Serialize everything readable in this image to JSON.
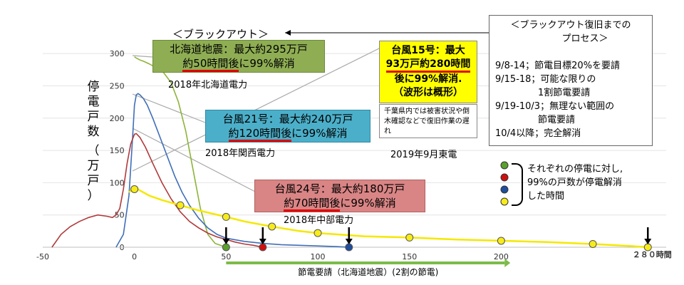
{
  "chart_data": {
    "type": "line",
    "title": "＜ブラックアウト＞",
    "xlabel": "",
    "ylabel": "停電戸数（万戸）",
    "xlim": [
      -50,
      290
    ],
    "ylim": [
      0,
      320
    ],
    "xticks": [
      -50,
      0,
      50,
      100,
      150,
      200
    ],
    "yticks": [
      0,
      50,
      100,
      150,
      200,
      250,
      300
    ],
    "series": [
      {
        "name": "2018年北海道電力",
        "color": "#8db33a",
        "x": [
          0,
          1,
          3,
          5,
          8,
          10,
          13,
          16,
          20,
          24,
          28,
          32,
          36,
          40,
          44,
          48,
          50
        ],
        "y": [
          295,
          293,
          290,
          288,
          284,
          281,
          278,
          270,
          255,
          225,
          180,
          120,
          60,
          20,
          6,
          2,
          0
        ]
      },
      {
        "name": "2018年関西電力",
        "color": "#3f6eb8",
        "x": [
          -10,
          -6,
          -3,
          -1,
          0,
          1,
          2,
          3,
          5,
          7,
          10,
          14,
          18,
          22,
          26,
          30,
          35,
          40,
          45,
          50,
          60,
          70,
          80,
          90,
          100,
          110,
          117
        ],
        "y": [
          0,
          20,
          80,
          170,
          220,
          236,
          238,
          236,
          230,
          220,
          200,
          170,
          140,
          110,
          85,
          65,
          45,
          30,
          20,
          14,
          9,
          6,
          4,
          3,
          2,
          1,
          0
        ]
      },
      {
        "name": "2018年中部電力",
        "color": "#b03a3a",
        "x": [
          -45,
          -40,
          -35,
          -30,
          -25,
          -20,
          -15,
          -12,
          -10,
          -8,
          -6,
          -4,
          -2,
          0,
          1,
          3,
          6,
          10,
          15,
          20,
          25,
          30,
          35,
          40,
          45,
          50,
          55,
          60,
          65,
          70
        ],
        "y": [
          0,
          20,
          32,
          40,
          46,
          50,
          48,
          46,
          50,
          60,
          90,
          130,
          160,
          175,
          176,
          170,
          155,
          130,
          100,
          75,
          55,
          40,
          30,
          22,
          16,
          12,
          8,
          5,
          3,
          0
        ]
      },
      {
        "name": "2019年9月東電",
        "color": "#f5e800",
        "x": [
          -3,
          0,
          3,
          8,
          15,
          25,
          35,
          50,
          60,
          75,
          90,
          100,
          110,
          125,
          150,
          175,
          200,
          225,
          250,
          270,
          280
        ],
        "y": [
          85,
          93,
          88,
          80,
          73,
          65,
          57,
          47,
          40,
          32,
          25,
          22,
          20,
          17,
          15,
          12,
          10,
          8,
          5,
          2,
          0
        ]
      }
    ],
    "markers": [
      {
        "x": 0,
        "y": 90,
        "color": "#f7ec1a"
      },
      {
        "x": 25,
        "y": 65,
        "color": "#f7ec1a"
      },
      {
        "x": 50,
        "y": 47,
        "color": "#f7ec1a"
      },
      {
        "x": 75,
        "y": 32,
        "color": "#f7ec1a"
      },
      {
        "x": 100,
        "y": 22,
        "color": "#f7ec1a"
      },
      {
        "x": 150,
        "y": 15,
        "color": "#f7ec1a"
      },
      {
        "x": 200,
        "y": 10,
        "color": "#f7ec1a"
      },
      {
        "x": 250,
        "y": 5,
        "color": "#f7ec1a"
      },
      {
        "x": 280,
        "y": 0,
        "color": "#f7ec1a"
      },
      {
        "x": 50,
        "y": 0,
        "color": "#5aa02c"
      },
      {
        "x": 70,
        "y": 0,
        "color": "#d01010"
      },
      {
        "x": 117,
        "y": 0,
        "color": "#1f4e9c"
      }
    ],
    "arrows_down_at": [
      50,
      70,
      117,
      280
    ],
    "hours_label": "２８０時間",
    "bottom_bar": {
      "x_start": 50,
      "x_end": 205,
      "label": "節電要請（北海道地震）(2割の節電)"
    }
  },
  "callouts": {
    "hokkaido": {
      "line1": "北海道地震：最大約295万戸",
      "line2": "約50時間後",
      "line2b": "に99%解消",
      "caption": "2018年北海道電力"
    },
    "kansai": {
      "line1": "台風21号：最大約240万戸",
      "line2": "約120時間後",
      "line2b": "に99%解消",
      "caption": "2018年関西電力"
    },
    "chubu": {
      "line1": "台風24号：最大約180万戸",
      "line2": "約70時間後",
      "line2b": "に99%解消",
      "caption": "2018年中部電力"
    },
    "tepco": {
      "line1": "台風15号：最大",
      "line2": "93万戸約280時間",
      "line3": "後に99%解消.",
      "line4": "（波形は概形）",
      "note": "千葉県内では被害状況や倒木確認などで復旧作業の遅れ",
      "caption": "2019年9月東電"
    }
  },
  "blackout_label": "＜ブラックアウト＞",
  "process": {
    "title1": "＜ブラックアウト復旧までの",
    "title2": "プロセス＞",
    "items": [
      "9/8-14；節電目標20%を要請",
      "9/15-18；可能な限りの",
      "1割節電要請",
      "9/19-10/3；無理ない範囲の",
      "節電要請",
      "10/4以降；完全解消"
    ]
  },
  "legend_note": {
    "line1": "それぞれの停電に対し,",
    "line2": "99%の戸数が停電解消",
    "line3": "した時間",
    "colors": [
      "#5aa02c",
      "#d01010",
      "#1f4e9c",
      "#f7ec1a"
    ]
  },
  "ylabel_chars": [
    "停",
    "電",
    "戸",
    "数",
    "（",
    "万",
    "戸",
    "）"
  ]
}
